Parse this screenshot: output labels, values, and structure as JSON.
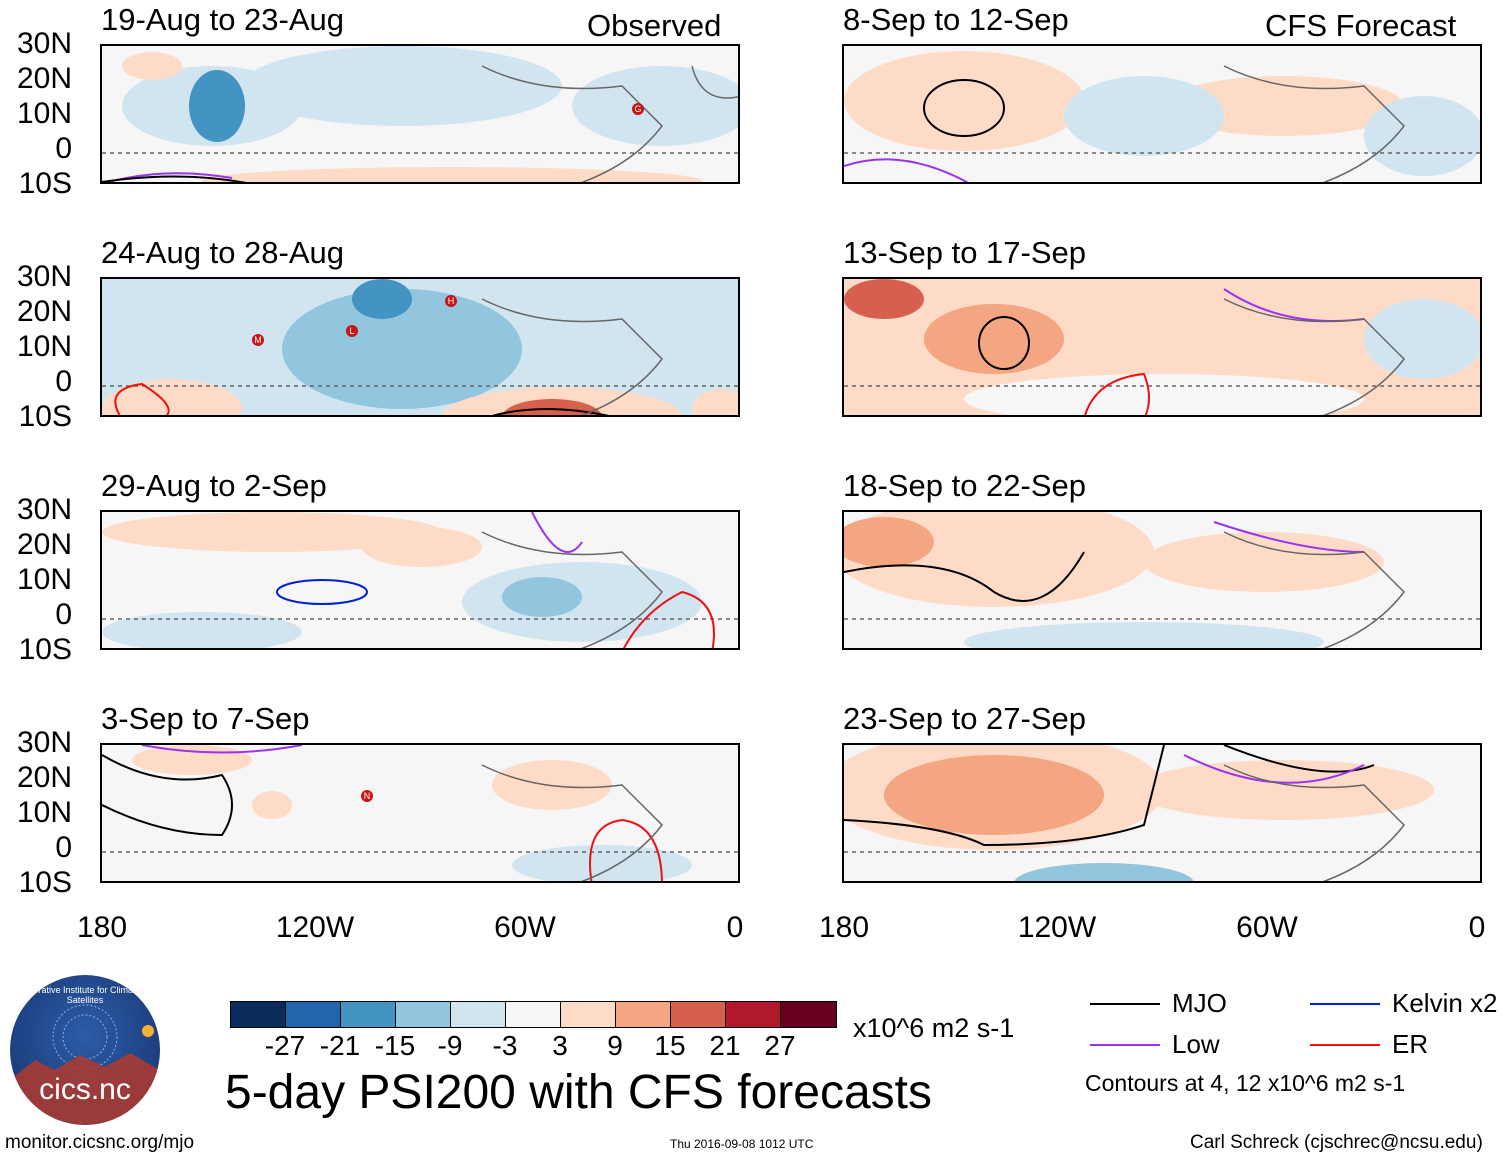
{
  "header": {
    "observed_label": "Observed",
    "forecast_label": "CFS Forecast"
  },
  "panels_left": [
    {
      "title": "19-Aug to 23-Aug"
    },
    {
      "title": "24-Aug to 28-Aug"
    },
    {
      "title": "29-Aug to 2-Sep"
    },
    {
      "title": "3-Sep to 7-Sep"
    }
  ],
  "panels_right": [
    {
      "title": "8-Sep to 12-Sep"
    },
    {
      "title": "13-Sep to 17-Sep"
    },
    {
      "title": "18-Sep to 22-Sep"
    },
    {
      "title": "23-Sep to 27-Sep"
    }
  ],
  "lat_labels": [
    "30N",
    "20N",
    "10N",
    "0",
    "10S"
  ],
  "lon_labels": [
    "180",
    "120W",
    "60W",
    "0"
  ],
  "colorbar": {
    "colors": [
      "#0a2c5c",
      "#2166ac",
      "#4393c3",
      "#92c5de",
      "#d1e5f0",
      "#f7f7f7",
      "#fddbc7",
      "#f4a582",
      "#d6604d",
      "#b2182b",
      "#67001f"
    ],
    "labels": [
      "-27",
      "-21",
      "-15",
      "-9",
      "-3",
      "3",
      "9",
      "15",
      "21",
      "27"
    ],
    "units": "x10^6 m2 s-1"
  },
  "legend": {
    "mjo": "MJO",
    "low": "Low",
    "kelvin": "Kelvin x2",
    "er": "ER",
    "contours": "Contours at 4, 12 x10^6 m2 s-1",
    "colors": {
      "mjo": "#000000",
      "low": "#9933ee",
      "kelvin": "#0022cc",
      "er": "#ee1111"
    }
  },
  "main_title": "5-day PSI200 with CFS forecasts",
  "logo_text": "cics.nc",
  "logo_ring_text": "Cooperative Institute for Climate and Satellites",
  "footer": {
    "url": "monitor.cicsnc.org/mjo",
    "timestamp": "Thu 2016-09-08 1012 UTC",
    "author": "Carl Schreck (cjschrec@ncsu.edu)"
  },
  "storms": [
    {
      "panel": "19-Aug to 23-Aug",
      "letter": "G"
    },
    {
      "panel": "24-Aug to 28-Aug",
      "letter": "M"
    },
    {
      "panel": "24-Aug to 28-Aug",
      "letter": "L"
    },
    {
      "panel": "24-Aug to 28-Aug",
      "letter": "H"
    },
    {
      "panel": "3-Sep to 7-Sep",
      "letter": "N"
    }
  ]
}
